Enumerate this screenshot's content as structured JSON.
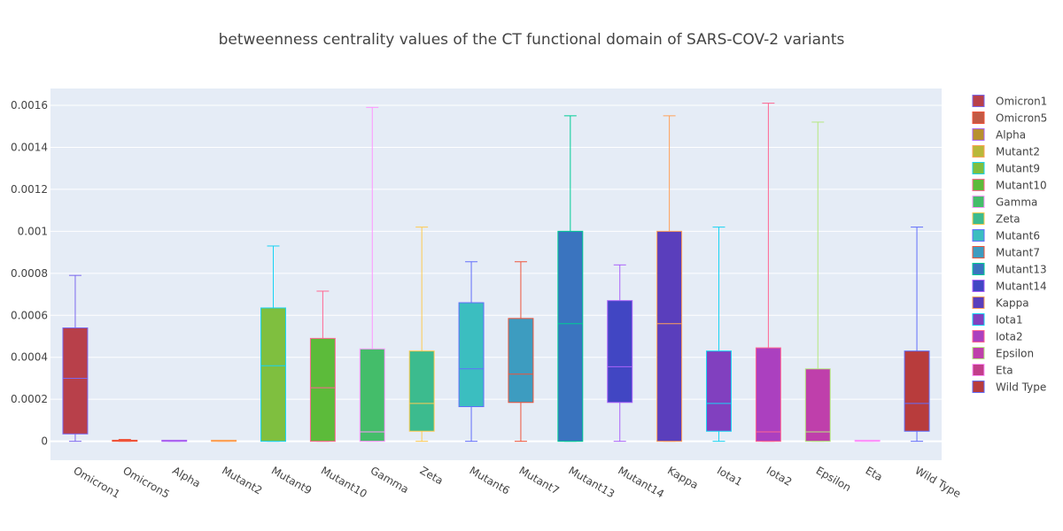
{
  "chart_data": {
    "type": "box",
    "title": "betweenness centrality values of the CT functional domain of SARS-COV-2 variants",
    "xlabel": "",
    "ylabel": "",
    "ylim": [
      -9e-05,
      0.00168
    ],
    "yticks": [
      0,
      0.0002,
      0.0004,
      0.0006,
      0.0008,
      0.001,
      0.0012,
      0.0014,
      0.0016
    ],
    "ytick_labels": [
      "0",
      "0.0002",
      "0.0004",
      "0.0006",
      "0.0008",
      "0.001",
      "0.0012",
      "0.0014",
      "0.0016"
    ],
    "grid": true,
    "legend_position": "right",
    "series": [
      {
        "name": "Omicron1",
        "color": "#b8404a",
        "line": "#7b68ee",
        "min": 0,
        "q1": 3.5e-05,
        "median": 0.0003,
        "q3": 0.00054,
        "max": 0.00079
      },
      {
        "name": "Omicron5",
        "color": "#c35a44",
        "line": "#ef553b",
        "min": 0,
        "q1": 0,
        "median": 2e-06,
        "q3": 4e-06,
        "max": 9e-06
      },
      {
        "name": "Alpha",
        "color": "#b8902e",
        "line": "#ab63fa",
        "min": 0,
        "q1": 0,
        "median": 0,
        "q3": 2e-06,
        "max": 4e-06
      },
      {
        "name": "Mutant2",
        "color": "#b8b83a",
        "line": "#ffa15a",
        "min": 0,
        "q1": 0,
        "median": 0,
        "q3": 1e-06,
        "max": 2e-06
      },
      {
        "name": "Mutant9",
        "color": "#7fbf3f",
        "line": "#19d3f3",
        "min": 0,
        "q1": 0,
        "median": 0.00036,
        "q3": 0.000635,
        "max": 0.00093
      },
      {
        "name": "Mutant10",
        "color": "#5cbb3a",
        "line": "#ff6692",
        "min": 0,
        "q1": 0,
        "median": 0.000255,
        "q3": 0.00049,
        "max": 0.000715
      },
      {
        "name": "Gamma",
        "color": "#44bd6a",
        "line": "#ff97ff",
        "min": 0,
        "q1": 0,
        "median": 4.5e-05,
        "q3": 0.00044,
        "max": 0.00159
      },
      {
        "name": "Zeta",
        "color": "#3cbb8e",
        "line": "#fecb52",
        "min": 0,
        "q1": 4.8e-05,
        "median": 0.00018,
        "q3": 0.00043,
        "max": 0.00102
      },
      {
        "name": "Mutant6",
        "color": "#3bbec0",
        "line": "#636efa",
        "min": 0,
        "q1": 0.000165,
        "median": 0.000345,
        "q3": 0.00066,
        "max": 0.000855
      },
      {
        "name": "Mutant7",
        "color": "#3d9cc0",
        "line": "#ef553b",
        "min": 0,
        "q1": 0.000185,
        "median": 0.00032,
        "q3": 0.000585,
        "max": 0.000855
      },
      {
        "name": "Mutant13",
        "color": "#3a74bf",
        "line": "#00cc96",
        "min": 0,
        "q1": 0,
        "median": 0.00056,
        "q3": 0.001,
        "max": 0.00155
      },
      {
        "name": "Mutant14",
        "color": "#4146c3",
        "line": "#ab63fa",
        "min": 0,
        "q1": 0.000185,
        "median": 0.000355,
        "q3": 0.00067,
        "max": 0.00084
      },
      {
        "name": "Kappa",
        "color": "#5a3ebc",
        "line": "#ffa15a",
        "min": 0,
        "q1": 0,
        "median": 0.00056,
        "q3": 0.001,
        "max": 0.00155
      },
      {
        "name": "Iota1",
        "color": "#8140bf",
        "line": "#19d3f3",
        "min": 0,
        "q1": 4.8e-05,
        "median": 0.00018,
        "q3": 0.00043,
        "max": 0.00102
      },
      {
        "name": "Iota2",
        "color": "#ab40bf",
        "line": "#ff6692",
        "min": 0,
        "q1": 0,
        "median": 4.5e-05,
        "q3": 0.000445,
        "max": 0.00161
      },
      {
        "name": "Epsilon",
        "color": "#bf3fab",
        "line": "#b6e880",
        "min": 0,
        "q1": 0,
        "median": 4.5e-05,
        "q3": 0.000345,
        "max": 0.00152
      },
      {
        "name": "Eta",
        "color": "#c23e8a",
        "line": "#ff97ff",
        "min": 0,
        "q1": 0,
        "median": 0,
        "q3": 1e-06,
        "max": 2e-06
      },
      {
        "name": "Wild Type",
        "color": "#b83c3c",
        "line": "#636efa",
        "min": 0,
        "q1": 4.8e-05,
        "median": 0.00018,
        "q3": 0.00043,
        "max": 0.00102
      }
    ]
  }
}
